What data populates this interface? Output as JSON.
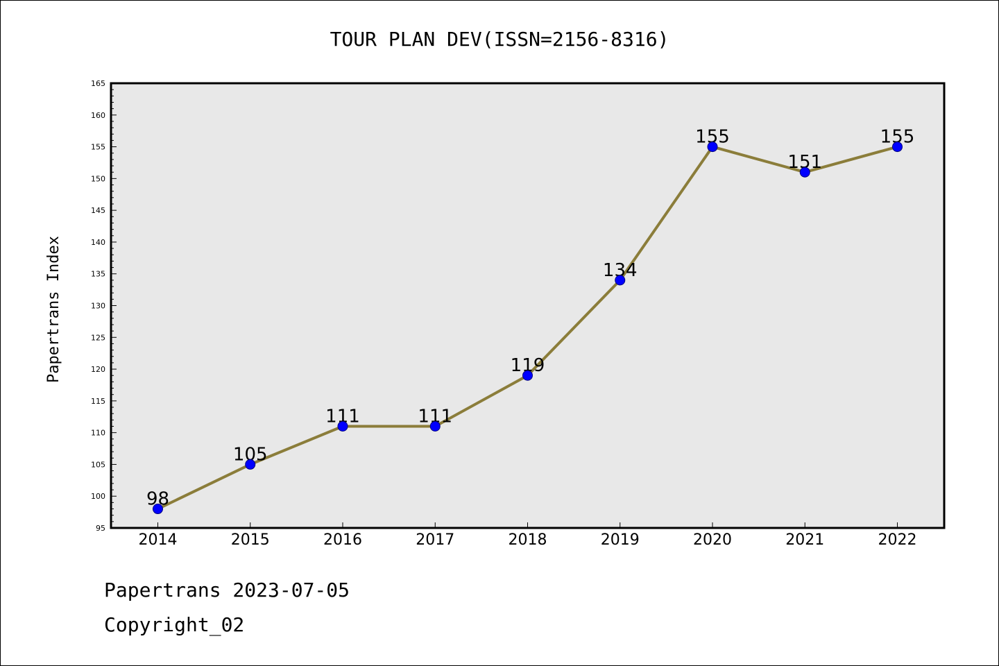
{
  "chart_data": {
    "type": "line",
    "title": "TOUR PLAN DEV(ISSN=2156-8316)",
    "xlabel": "",
    "ylabel": "Papertrans Index",
    "categories": [
      "2014",
      "2015",
      "2016",
      "2017",
      "2018",
      "2019",
      "2020",
      "2021",
      "2022"
    ],
    "series": [
      {
        "values": [
          98,
          105,
          111,
          111,
          119,
          134,
          155,
          151,
          155
        ]
      }
    ],
    "ylim": [
      95,
      165
    ],
    "yticks": [
      95,
      100,
      105,
      110,
      115,
      120,
      125,
      130,
      135,
      140,
      145,
      150,
      155,
      160,
      165
    ],
    "grid": false,
    "legend": "none",
    "data_labels": true,
    "colors": {
      "line": "#8B7D3A",
      "marker": "#0000FF",
      "plot_background": "#E8E8E8"
    }
  },
  "footer": {
    "line1": "Papertrans 2023-07-05",
    "line2": "Copyright_02"
  }
}
